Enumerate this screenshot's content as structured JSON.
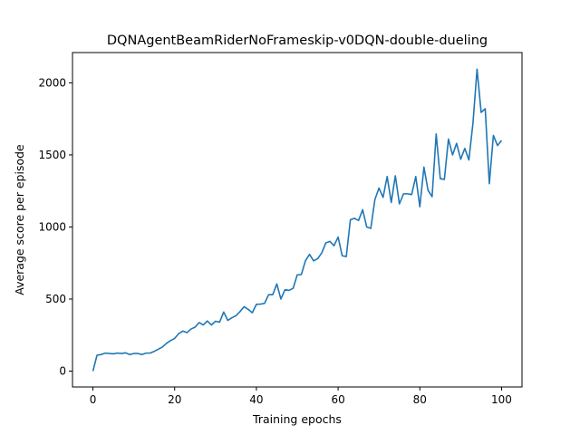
{
  "chart_data": {
    "type": "line",
    "title": "DQNAgentBeamRiderNoFrameskip-v0DQN-double-dueling",
    "xlabel": "Training epochs",
    "ylabel": "Average score per episode",
    "xlim": [
      -5,
      105
    ],
    "ylim": [
      -110,
      2210
    ],
    "xticks": [
      0,
      20,
      40,
      60,
      80,
      100
    ],
    "yticks": [
      0,
      500,
      1000,
      1500,
      2000
    ],
    "grid": false,
    "line_color": "#1f77b4",
    "series": [
      {
        "x": [
          0,
          1,
          2,
          3,
          4,
          5,
          6,
          7,
          8,
          9,
          10,
          11,
          12,
          13,
          14,
          15,
          16,
          17,
          18,
          19,
          20,
          21,
          22,
          23,
          24,
          25,
          26,
          27,
          28,
          29,
          30,
          31,
          32,
          33,
          34,
          35,
          36,
          37,
          38,
          39,
          40,
          41,
          42,
          43,
          44,
          45,
          46,
          47,
          48,
          49,
          50,
          51,
          52,
          53,
          54,
          55,
          56,
          57,
          58,
          59,
          60,
          61,
          62,
          63,
          64,
          65,
          66,
          67,
          68,
          69,
          70,
          71,
          72,
          73,
          74,
          75,
          76,
          77,
          78,
          79,
          80,
          81,
          82,
          83,
          84,
          85,
          86,
          87,
          88,
          89,
          90,
          91,
          92,
          93,
          94,
          95,
          96,
          97,
          98,
          99,
          100
        ],
        "y": [
          0,
          110,
          115,
          125,
          122,
          120,
          125,
          122,
          127,
          115,
          122,
          122,
          115,
          125,
          125,
          137,
          152,
          167,
          193,
          212,
          227,
          260,
          278,
          267,
          292,
          305,
          337,
          320,
          348,
          320,
          346,
          340,
          410,
          352,
          370,
          385,
          413,
          447,
          428,
          405,
          463,
          465,
          470,
          530,
          530,
          605,
          500,
          565,
          560,
          575,
          668,
          670,
          765,
          810,
          765,
          780,
          820,
          890,
          900,
          870,
          930,
          800,
          795,
          1050,
          1060,
          1045,
          1120,
          1000,
          990,
          1190,
          1270,
          1205,
          1350,
          1170,
          1355,
          1160,
          1230,
          1230,
          1225,
          1350,
          1140,
          1415,
          1255,
          1210,
          1645,
          1335,
          1330,
          1610,
          1500,
          1580,
          1470,
          1545,
          1465,
          1720,
          2095,
          1795,
          1820,
          1300,
          1635,
          1565,
          1600
        ]
      }
    ]
  }
}
